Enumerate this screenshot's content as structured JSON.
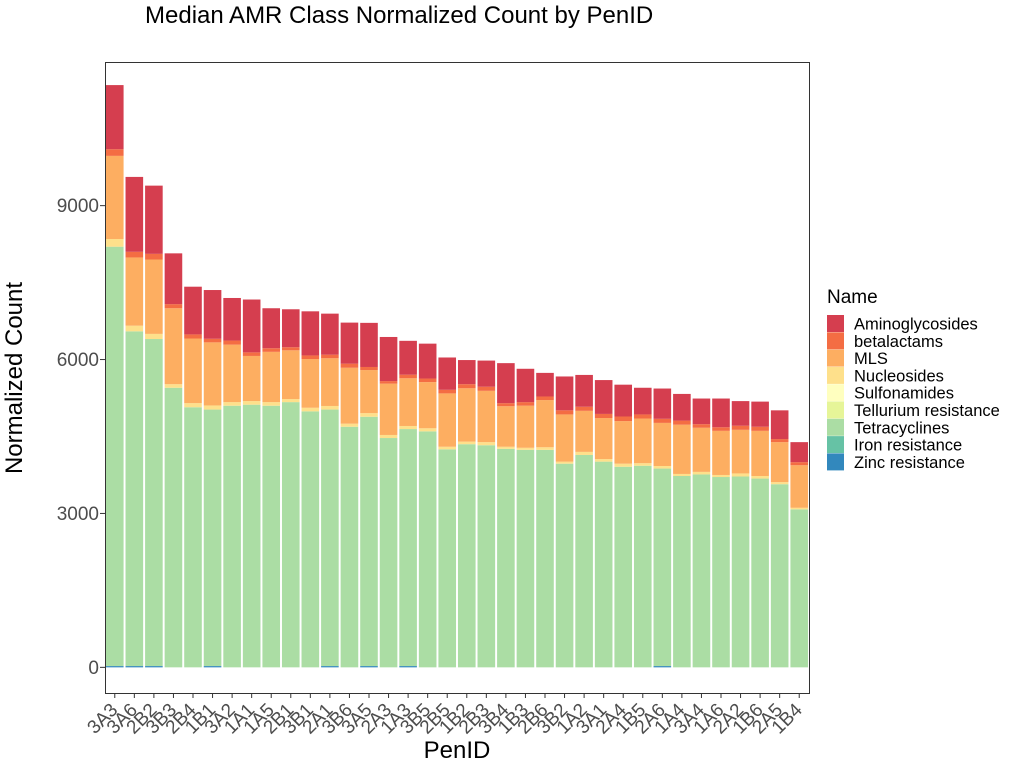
{
  "chart_data": {
    "type": "bar",
    "stacked": true,
    "title": "Median AMR Class Normalized Count by PenID",
    "xlabel": "PenID",
    "ylabel": "Normalized Count",
    "ylim": [
      -500,
      11800
    ],
    "yticks": [
      0,
      3000,
      6000,
      9000
    ],
    "grid": false,
    "legend_title": "Name",
    "legend_position": "right",
    "categories": [
      "3A3",
      "3A6",
      "2B2",
      "3B3",
      "2B4",
      "1B1",
      "3A2",
      "1A1",
      "1A5",
      "2B1",
      "3B1",
      "2A1",
      "3B6",
      "3A5",
      "2A3",
      "1A3",
      "3B5",
      "2B5",
      "1B2",
      "2B3",
      "3B4",
      "1B3",
      "2B6",
      "3B2",
      "1A2",
      "3A1",
      "2A4",
      "1B5",
      "2A6",
      "1A4",
      "3A4",
      "1A6",
      "2A2",
      "1B6",
      "2A5",
      "1B4"
    ],
    "series": [
      {
        "name": "Zinc resistance",
        "color": "#3288bd",
        "values": [
          25,
          25,
          25,
          0,
          0,
          25,
          0,
          0,
          0,
          0,
          0,
          25,
          0,
          25,
          0,
          25,
          0,
          0,
          0,
          0,
          0,
          0,
          0,
          0,
          0,
          0,
          0,
          0,
          25,
          0,
          0,
          0,
          0,
          0,
          0,
          0
        ]
      },
      {
        "name": "Iron resistance",
        "color": "#66c2a5",
        "values": [
          0,
          0,
          0,
          0,
          0,
          0,
          0,
          0,
          0,
          0,
          0,
          0,
          0,
          0,
          0,
          0,
          0,
          0,
          0,
          0,
          0,
          0,
          0,
          0,
          0,
          0,
          0,
          0,
          0,
          0,
          0,
          0,
          0,
          0,
          0,
          0
        ]
      },
      {
        "name": "Tetracyclines",
        "color": "#abdda4",
        "values": [
          8175,
          6525,
          6375,
          5450,
          5070,
          5000,
          5100,
          5120,
          5100,
          5170,
          4990,
          5000,
          4690,
          4860,
          4470,
          4620,
          4600,
          4250,
          4350,
          4330,
          4260,
          4240,
          4240,
          3970,
          4140,
          4010,
          3910,
          3930,
          3850,
          3730,
          3760,
          3710,
          3720,
          3680,
          3570,
          3080
        ]
      },
      {
        "name": "Tellurium resistance",
        "color": "#e6f598",
        "values": [
          0,
          0,
          0,
          0,
          0,
          0,
          0,
          0,
          0,
          0,
          0,
          0,
          0,
          0,
          0,
          0,
          0,
          0,
          0,
          0,
          0,
          0,
          0,
          0,
          0,
          0,
          0,
          0,
          0,
          0,
          0,
          0,
          0,
          0,
          0,
          0
        ]
      },
      {
        "name": "Sulfonamides",
        "color": "#ffffbf",
        "values": [
          0,
          0,
          0,
          0,
          0,
          0,
          0,
          0,
          0,
          0,
          0,
          0,
          0,
          0,
          0,
          0,
          0,
          0,
          0,
          0,
          0,
          0,
          0,
          0,
          0,
          0,
          0,
          0,
          0,
          0,
          0,
          0,
          0,
          0,
          0,
          0
        ]
      },
      {
        "name": "Nucleosides",
        "color": "#fee08b",
        "values": [
          150,
          110,
          100,
          70,
          80,
          80,
          70,
          70,
          70,
          60,
          70,
          70,
          60,
          70,
          60,
          60,
          60,
          50,
          50,
          60,
          40,
          40,
          50,
          40,
          60,
          50,
          60,
          50,
          50,
          40,
          50,
          40,
          60,
          50,
          40,
          30
        ]
      },
      {
        "name": "MLS",
        "color": "#fdae61",
        "values": [
          1620,
          1330,
          1450,
          1480,
          1260,
          1230,
          1120,
          880,
          980,
          950,
          950,
          930,
          1090,
          840,
          1000,
          930,
          900,
          1040,
          1040,
          1000,
          790,
          820,
          920,
          920,
          800,
          800,
          830,
          870,
          840,
          960,
          860,
          860,
          850,
          880,
          780,
          830
        ]
      },
      {
        "name": "betalactams",
        "color": "#f46d43",
        "values": [
          130,
          110,
          110,
          80,
          80,
          70,
          80,
          70,
          70,
          60,
          70,
          70,
          80,
          60,
          50,
          70,
          70,
          70,
          80,
          80,
          60,
          70,
          70,
          80,
          80,
          80,
          90,
          80,
          80,
          80,
          70,
          70,
          80,
          80,
          60,
          60
        ]
      },
      {
        "name": "Aminoglycosides",
        "color": "#d53e4f",
        "values": [
          1250,
          1460,
          1330,
          990,
          930,
          950,
          830,
          1030,
          780,
          740,
          860,
          800,
          800,
          860,
          860,
          660,
          680,
          630,
          470,
          510,
          780,
          650,
          460,
          660,
          620,
          660,
          620,
          520,
          590,
          520,
          500,
          560,
          480,
          490,
          560,
          390
        ]
      }
    ]
  }
}
